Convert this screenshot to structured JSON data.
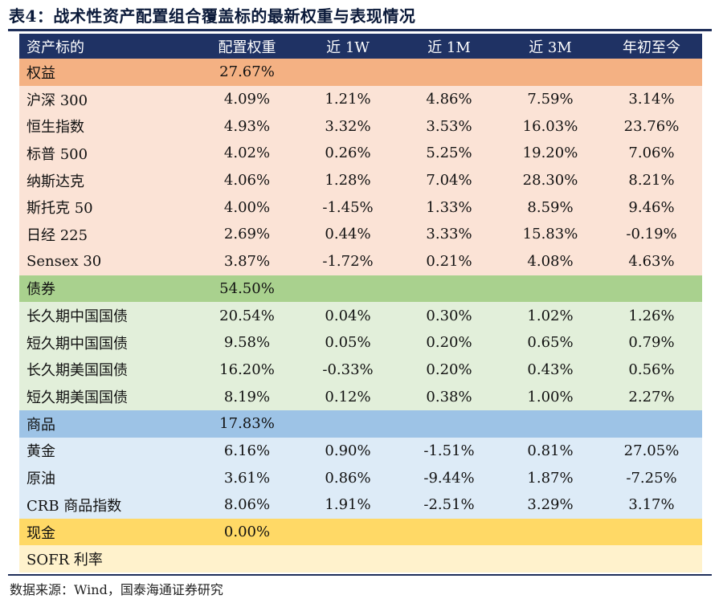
{
  "title": "表4：战术性资产配置组合覆盖标的最新权重与表现情况",
  "header": [
    "资产标的",
    "配置权重",
    "近 1W",
    "近 1M",
    "近 3M",
    "年初至今"
  ],
  "sections": [
    {
      "name": "权益",
      "weight": "27.67%",
      "rows": [
        [
          "沪深 300",
          "4.09%",
          "1.21%",
          "4.86%",
          "7.59%",
          "3.14%"
        ],
        [
          "恒生指数",
          "4.93%",
          "3.32%",
          "3.53%",
          "16.03%",
          "23.76%"
        ],
        [
          "标普 500",
          "4.02%",
          "0.26%",
          "5.25%",
          "19.20%",
          "7.06%"
        ],
        [
          "纳斯达克",
          "4.06%",
          "1.28%",
          "7.04%",
          "28.30%",
          "8.21%"
        ],
        [
          "斯托克 50",
          "4.00%",
          "-1.45%",
          "1.33%",
          "8.59%",
          "9.46%"
        ],
        [
          "日经 225",
          "2.69%",
          "0.44%",
          "3.33%",
          "15.83%",
          "-0.19%"
        ],
        [
          "Sensex 30",
          "3.87%",
          "-1.72%",
          "0.21%",
          "4.08%",
          "4.63%"
        ]
      ]
    },
    {
      "name": "债券",
      "weight": "54.50%",
      "rows": [
        [
          "长久期中国国债",
          "20.54%",
          "0.04%",
          "0.30%",
          "1.02%",
          "1.26%"
        ],
        [
          "短久期中国国债",
          "9.58%",
          "0.05%",
          "0.20%",
          "0.65%",
          "0.79%"
        ],
        [
          "长久期美国国债",
          "16.20%",
          "-0.33%",
          "0.20%",
          "0.43%",
          "0.56%"
        ],
        [
          "短久期美国国债",
          "8.19%",
          "0.12%",
          "0.38%",
          "1.00%",
          "2.27%"
        ]
      ]
    },
    {
      "name": "商品",
      "weight": "17.83%",
      "rows": [
        [
          "黄金",
          "6.16%",
          "0.90%",
          "-1.51%",
          "0.81%",
          "27.05%"
        ],
        [
          "原油",
          "3.61%",
          "0.86%",
          "-9.44%",
          "1.87%",
          "-7.25%"
        ],
        [
          "CRB 商品指数",
          "8.06%",
          "1.91%",
          "-2.51%",
          "3.29%",
          "3.17%"
        ]
      ]
    },
    {
      "name": "现金",
      "weight": "0.00%",
      "rows": [
        [
          "SOFR 利率",
          "",
          "",
          "",
          "",
          ""
        ]
      ]
    }
  ],
  "source": "数据来源：Wind，国泰海通证券研究"
}
